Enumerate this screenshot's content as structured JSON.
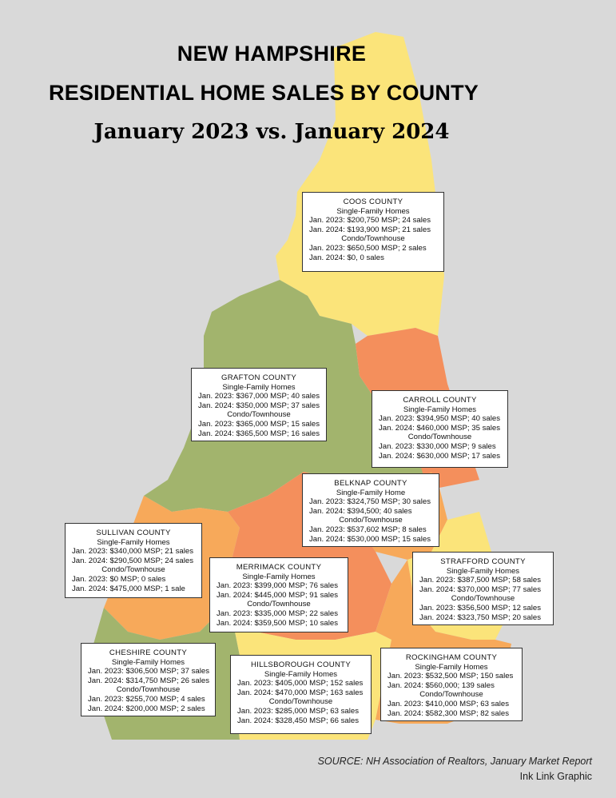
{
  "title": {
    "line1": "NEW HAMPSHIRE",
    "line2": "RESIDENTIAL HOME SALES BY COUNTY",
    "line3": "January 2023 vs. January 2024"
  },
  "colors": {
    "background": "#d9d9d9",
    "yellow": "#fbe47a",
    "orange_red": "#f48f5c",
    "orange": "#f7a95a",
    "green": "#a2b46d"
  },
  "counties": {
    "coos": {
      "name": "COOS COUNTY",
      "sf_label": "Single-Family Homes",
      "sf_2023": "Jan. 2023: $200,750 MSP; 24 sales",
      "sf_2024": "Jan. 2024: $193,900 MSP; 21 sales",
      "ct_label": "Condo/Townhouse",
      "ct_2023": "Jan. 2023: $650,500 MSP; 2 sales",
      "ct_2024": "Jan. 2024: $0, 0 sales"
    },
    "grafton": {
      "name": "GRAFTON COUNTY",
      "sf_label": "Single-Family Homes",
      "sf_2023": "Jan. 2023: $367,000 MSP; 40 sales",
      "sf_2024": "Jan. 2024: $350,000 MSP; 37 sales",
      "ct_label": "Condo/Townhouse",
      "ct_2023": "Jan. 2023: $365,000 MSP; 15 sales",
      "ct_2024": "Jan. 2024: $365,500 MSP; 16 sales"
    },
    "carroll": {
      "name": "CARROLL COUNTY",
      "sf_label": "Single-Family Homes",
      "sf_2023": "Jan. 2023: $394,950 MSP; 40 sales",
      "sf_2024": "Jan. 2024: $460,000 MSP; 35 sales",
      "ct_label": "Condo/Townhouse",
      "ct_2023": "Jan. 2023: $330,000 MSP; 9 sales",
      "ct_2024": "Jan. 2024: $630,000 MSP; 17 sales"
    },
    "belknap": {
      "name": "BELKNAP COUNTY",
      "sf_label": "Single-Family Home",
      "sf_2023": "Jan. 2023: $324,750 MSP; 30 sales",
      "sf_2024": "Jan. 2024: $394,500; 40 sales",
      "ct_label": "Condo/Townhouse",
      "ct_2023": "Jan. 2023: $537,602 MSP; 8 sales",
      "ct_2024": "Jan. 2024: $530,000 MSP; 15 sales"
    },
    "sullivan": {
      "name": "SULLIVAN COUNTY",
      "sf_label": "Single-Family Homes",
      "sf_2023": "Jan. 2023: $340,000 MSP; 21 sales",
      "sf_2024": "Jan. 2024: $290,500 MSP; 24 sales",
      "ct_label": "Condo/Townhouse",
      "ct_2023": "Jan. 2023: $0 MSP; 0 sales",
      "ct_2024": "Jan. 2024: $475,000 MSP; 1 sale"
    },
    "merrimack": {
      "name": "MERRIMACK COUNTY",
      "sf_label": "Single-Family Homes",
      "sf_2023": "Jan. 2023: $399,000 MSP; 76 sales",
      "sf_2024": "Jan. 2024: $445,000 MSP; 91 sales",
      "ct_label": "Condo/Townhouse",
      "ct_2023": "Jan. 2023: $335,000 MSP; 22 sales",
      "ct_2024": "Jan. 2024: $359,500 MSP; 10 sales"
    },
    "strafford": {
      "name": "STRAFFORD COUNTY",
      "sf_label": "Single-Family Homes",
      "sf_2023": "Jan. 2023: $387,500 MSP; 58 sales",
      "sf_2024": "Jan. 2024: $370,000 MSP; 77 sales",
      "ct_label": "Condo/Townhouse",
      "ct_2023": "Jan. 2023: $356,500 MSP; 12 sales",
      "ct_2024": "Jan. 2024: $323,750 MSP; 20 sales"
    },
    "cheshire": {
      "name": "CHESHIRE COUNTY",
      "sf_label": "Single-Family Homes",
      "sf_2023": "Jan. 2023: $306,500 MSP; 37 sales",
      "sf_2024": "Jan. 2024: $314,750 MSP; 26 sales",
      "ct_label": "Condo/Townhouse",
      "ct_2023": "Jan. 2023: $255,700 MSP; 4 sales",
      "ct_2024": "Jan. 2024: $200,000 MSP; 2 sales"
    },
    "hillsborough": {
      "name": "HILLSBOROUGH COUNTY",
      "sf_label": "Single-Family Homes",
      "sf_2023": "Jan. 2023: $405,000 MSP; 152 sales",
      "sf_2024": "Jan. 2024: $470,000 MSP; 163 sales",
      "ct_label": "Condo/Townhouse",
      "ct_2023": "Jan. 2023: $285,000 MSP; 63 sales",
      "ct_2024": "Jan. 2024: $328,450 MSP; 66 sales"
    },
    "rockingham": {
      "name": "ROCKINGHAM COUNTY",
      "sf_label": "Single-Family Homes",
      "sf_2023": "Jan. 2023: $532,500 MSP; 150 sales",
      "sf_2024": "Jan. 2024: $560,000; 139 sales",
      "ct_label": "Condo/Townhouse",
      "ct_2023": "Jan. 2023: $410,000 MSP; 63 sales",
      "ct_2024": "Jan. 2024: $582,300 MSP; 82 sales"
    }
  },
  "source": "SOURCE: NH Association of Realtors, January Market Report",
  "credit": "Ink Link Graphic"
}
